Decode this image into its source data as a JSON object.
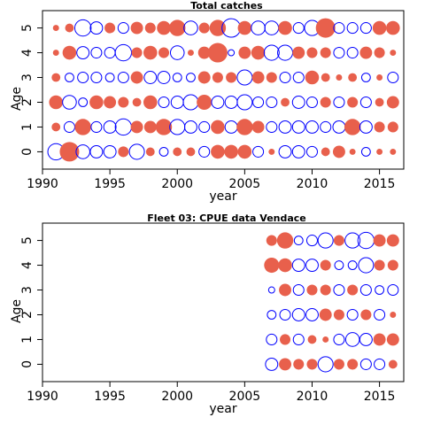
{
  "chart_data": [
    {
      "type": "scatter",
      "subtype": "bubble",
      "title": "Total catches",
      "xlabel": "year",
      "ylabel": "Age",
      "xlim": [
        1990,
        2016.8
      ],
      "ylim": [
        -0.7,
        5.7
      ],
      "xticks": [
        "1990",
        "1995",
        "2000",
        "2005",
        "2010",
        "2015"
      ],
      "yticks": [
        "0",
        "1",
        "2",
        "3",
        "4",
        "5"
      ],
      "legend": "none",
      "grid": false,
      "colors": {
        "positive": "#e8604c",
        "negative": "#0000ff"
      },
      "x": [
        1991,
        1992,
        1993,
        1994,
        1995,
        1996,
        1997,
        1998,
        1999,
        2000,
        2001,
        2002,
        2003,
        2004,
        2005,
        2006,
        2007,
        2008,
        2009,
        2010,
        2011,
        2012,
        2013,
        2014,
        2015,
        2016
      ],
      "ages": [
        0,
        1,
        2,
        3,
        4,
        5
      ],
      "residuals": [
        [
          -0.7,
          1.0,
          -0.5,
          -0.4,
          -0.4,
          0.3,
          -0.6,
          0.2,
          -0.2,
          0.2,
          0.2,
          -0.3,
          0.5,
          0.5,
          0.5,
          -0.3,
          0.1,
          -0.4,
          -0.4,
          -0.3,
          0.2,
          0.4,
          0.1,
          -0.2,
          0.1,
          0.1
        ],
        [
          0.2,
          -0.3,
          0.7,
          -0.3,
          -0.4,
          -0.7,
          0.4,
          0.4,
          0.7,
          -0.6,
          -0.4,
          -0.3,
          0.5,
          -0.4,
          0.7,
          0.4,
          -0.3,
          -0.4,
          -0.4,
          -0.4,
          -0.3,
          -0.4,
          0.7,
          -0.4,
          0.3,
          0.3
        ],
        [
          0.5,
          -0.5,
          -0.2,
          0.5,
          0.4,
          0.3,
          0.2,
          0.5,
          -0.3,
          -0.4,
          -0.6,
          0.6,
          -0.4,
          -0.4,
          -0.6,
          -0.3,
          -0.3,
          0.2,
          -0.4,
          -0.3,
          0.3,
          -0.3,
          0.3,
          -0.3,
          0.2,
          0.4
        ],
        [
          0.2,
          -0.2,
          -0.3,
          -0.3,
          -0.2,
          -0.3,
          0.4,
          -0.4,
          -0.4,
          -0.2,
          -0.2,
          0.4,
          0.3,
          0.3,
          -0.6,
          0.4,
          0.3,
          -0.3,
          -0.3,
          0.5,
          0.2,
          0.1,
          0.2,
          -0.2,
          0.1,
          -0.3
        ],
        [
          0.1,
          0.5,
          -0.4,
          -0.3,
          -0.3,
          -0.7,
          0.3,
          0.5,
          0.3,
          -0.5,
          0.1,
          0.4,
          1.0,
          -0.1,
          0.4,
          0.5,
          -0.6,
          -0.6,
          0.4,
          0.3,
          0.3,
          -0.3,
          -0.3,
          0.4,
          0.3,
          0.1
        ],
        [
          0.1,
          0.2,
          -0.7,
          -0.4,
          0.3,
          -0.3,
          0.4,
          0.3,
          0.5,
          0.7,
          -0.5,
          0.3,
          0.7,
          -0.9,
          0.5,
          -0.5,
          -0.5,
          0.5,
          -0.3,
          -0.6,
          1.0,
          -0.3,
          -0.3,
          -0.3,
          0.5,
          0.5
        ]
      ]
    },
    {
      "type": "scatter",
      "subtype": "bubble",
      "title": "Fleet 03:  CPUE data Vendace",
      "xlabel": "year",
      "ylabel": "Age",
      "xlim": [
        1990,
        2016.8
      ],
      "ylim": [
        -0.7,
        5.7
      ],
      "xticks": [
        "1990",
        "1995",
        "2000",
        "2005",
        "2010",
        "2015"
      ],
      "yticks": [
        "0",
        "1",
        "2",
        "3",
        "4",
        "5"
      ],
      "legend": "none",
      "grid": false,
      "colors": {
        "positive": "#e8604c",
        "negative": "#0000ff"
      },
      "x": [
        2007,
        2008,
        2009,
        2010,
        2011,
        2012,
        2013,
        2014,
        2015,
        2016
      ],
      "ages": [
        0,
        1,
        2,
        3,
        4,
        5
      ],
      "residuals": [
        [
          -0.4,
          0.4,
          0.3,
          0.3,
          -0.6,
          0.3,
          0.3,
          -0.3,
          -0.3,
          0.2
        ],
        [
          -0.3,
          0.3,
          -0.3,
          0.2,
          0.1,
          -0.3,
          -0.5,
          -0.4,
          0.4,
          0.4
        ],
        [
          -0.2,
          -0.3,
          -0.4,
          -0.4,
          0.4,
          0.3,
          -0.3,
          0.3,
          -0.3,
          0.1
        ],
        [
          -0.1,
          0.4,
          -0.3,
          0.3,
          0.3,
          -0.3,
          0.3,
          -0.3,
          -0.2,
          -0.3
        ],
        [
          0.6,
          0.5,
          -0.4,
          -0.4,
          0.3,
          -0.2,
          -0.2,
          -0.6,
          0.3,
          0.3
        ],
        [
          0.3,
          0.7,
          -0.2,
          -0.3,
          -0.6,
          0.3,
          -0.6,
          -0.7,
          0.4,
          0.4
        ]
      ]
    }
  ]
}
